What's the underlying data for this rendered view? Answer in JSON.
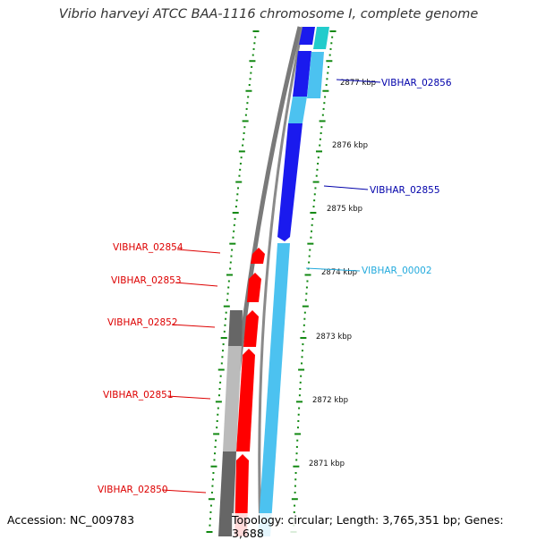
{
  "title": "Vibrio harveyi ATCC BAA-1116 chromosome I, complete genome",
  "footer": {
    "accession": "Accession: NC_009783",
    "summary": "Topology: circular; Length: 3,765,351 bp; Genes: 3,688"
  },
  "colors": {
    "forward_strong": "#1a1aee",
    "forward_light": "#4cc2f0",
    "forward_teal": "#22cccc",
    "reverse_gene": "#ff0000",
    "cds_dark": "#666666",
    "cds_light": "#bbbbbb",
    "tick": "#118811",
    "label_forward": "#0000aa",
    "label_light": "#22aadd",
    "label_reverse": "#dd0000"
  },
  "kbp_labels": [
    "2877 kbp",
    "2876 kbp",
    "2875 kbp",
    "2874 kbp",
    "2873 kbp",
    "2872 kbp",
    "2871 kbp"
  ],
  "gene_labels": [
    {
      "text": "VIBHAR_02856",
      "strand": "forward"
    },
    {
      "text": "VIBHAR_02855",
      "strand": "forward"
    },
    {
      "text": "VIBHAR_00002",
      "strand": "forward-light"
    },
    {
      "text": "VIBHAR_02854",
      "strand": "reverse"
    },
    {
      "text": "VIBHAR_02853",
      "strand": "reverse"
    },
    {
      "text": "VIBHAR_02852",
      "strand": "reverse"
    },
    {
      "text": "VIBHAR_02851",
      "strand": "reverse"
    },
    {
      "text": "VIBHAR_02850",
      "strand": "reverse"
    }
  ]
}
